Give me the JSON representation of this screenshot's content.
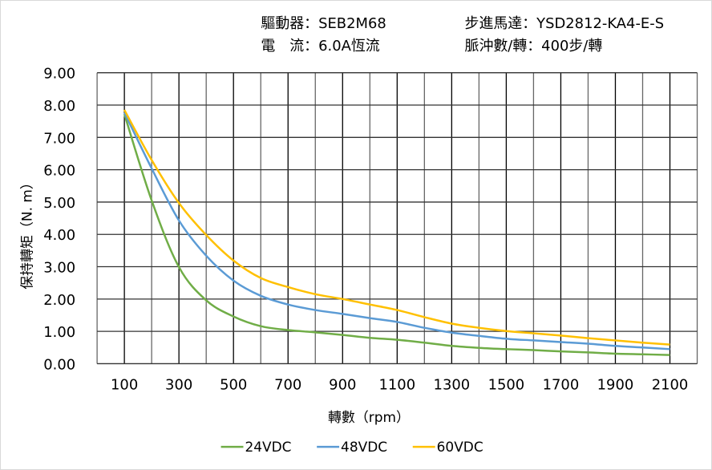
{
  "header": {
    "driver_label": "驅動器：SEB2M68",
    "motor_label": "步進馬達：YSD2812-KA4-E-S",
    "current_label": "電　流：6.0A恆流",
    "pulse_label": "脈沖數/轉：400步/轉"
  },
  "chart_data": {
    "type": "line",
    "title": "",
    "xlabel": "轉數（rpm）",
    "ylabel": "保持轉矩（N. m）",
    "xlim": [
      0,
      2200
    ],
    "ylim": [
      0,
      9
    ],
    "grid": true,
    "legend_position": "bottom",
    "x_ticks": [
      "100",
      "300",
      "500",
      "700",
      "900",
      "1100",
      "1300",
      "1500",
      "1700",
      "1900",
      "2100"
    ],
    "y_ticks": [
      "0.00",
      "1.00",
      "2.00",
      "3.00",
      "4.00",
      "5.00",
      "6.00",
      "7.00",
      "8.00",
      "9.00"
    ],
    "x": [
      100,
      200,
      300,
      400,
      500,
      600,
      700,
      800,
      900,
      1000,
      1100,
      1200,
      1300,
      1400,
      1500,
      1600,
      1700,
      1800,
      1900,
      2000,
      2100
    ],
    "series": [
      {
        "name": "24VDC",
        "color": "#70AD47",
        "values": [
          7.72,
          5.05,
          2.99,
          1.96,
          1.46,
          1.16,
          1.04,
          0.97,
          0.89,
          0.8,
          0.74,
          0.65,
          0.55,
          0.49,
          0.45,
          0.42,
          0.38,
          0.35,
          0.31,
          0.29,
          0.27
        ]
      },
      {
        "name": "48VDC",
        "color": "#5B9BD5",
        "values": [
          7.77,
          6.04,
          4.43,
          3.34,
          2.57,
          2.1,
          1.83,
          1.66,
          1.54,
          1.41,
          1.29,
          1.11,
          0.96,
          0.86,
          0.77,
          0.72,
          0.67,
          0.62,
          0.55,
          0.5,
          0.45
        ]
      },
      {
        "name": "60VDC",
        "color": "#FFC000",
        "values": [
          7.85,
          6.3,
          4.97,
          3.98,
          3.19,
          2.65,
          2.37,
          2.15,
          2.0,
          1.83,
          1.66,
          1.44,
          1.24,
          1.11,
          1.01,
          0.94,
          0.87,
          0.79,
          0.72,
          0.65,
          0.59
        ]
      }
    ]
  }
}
